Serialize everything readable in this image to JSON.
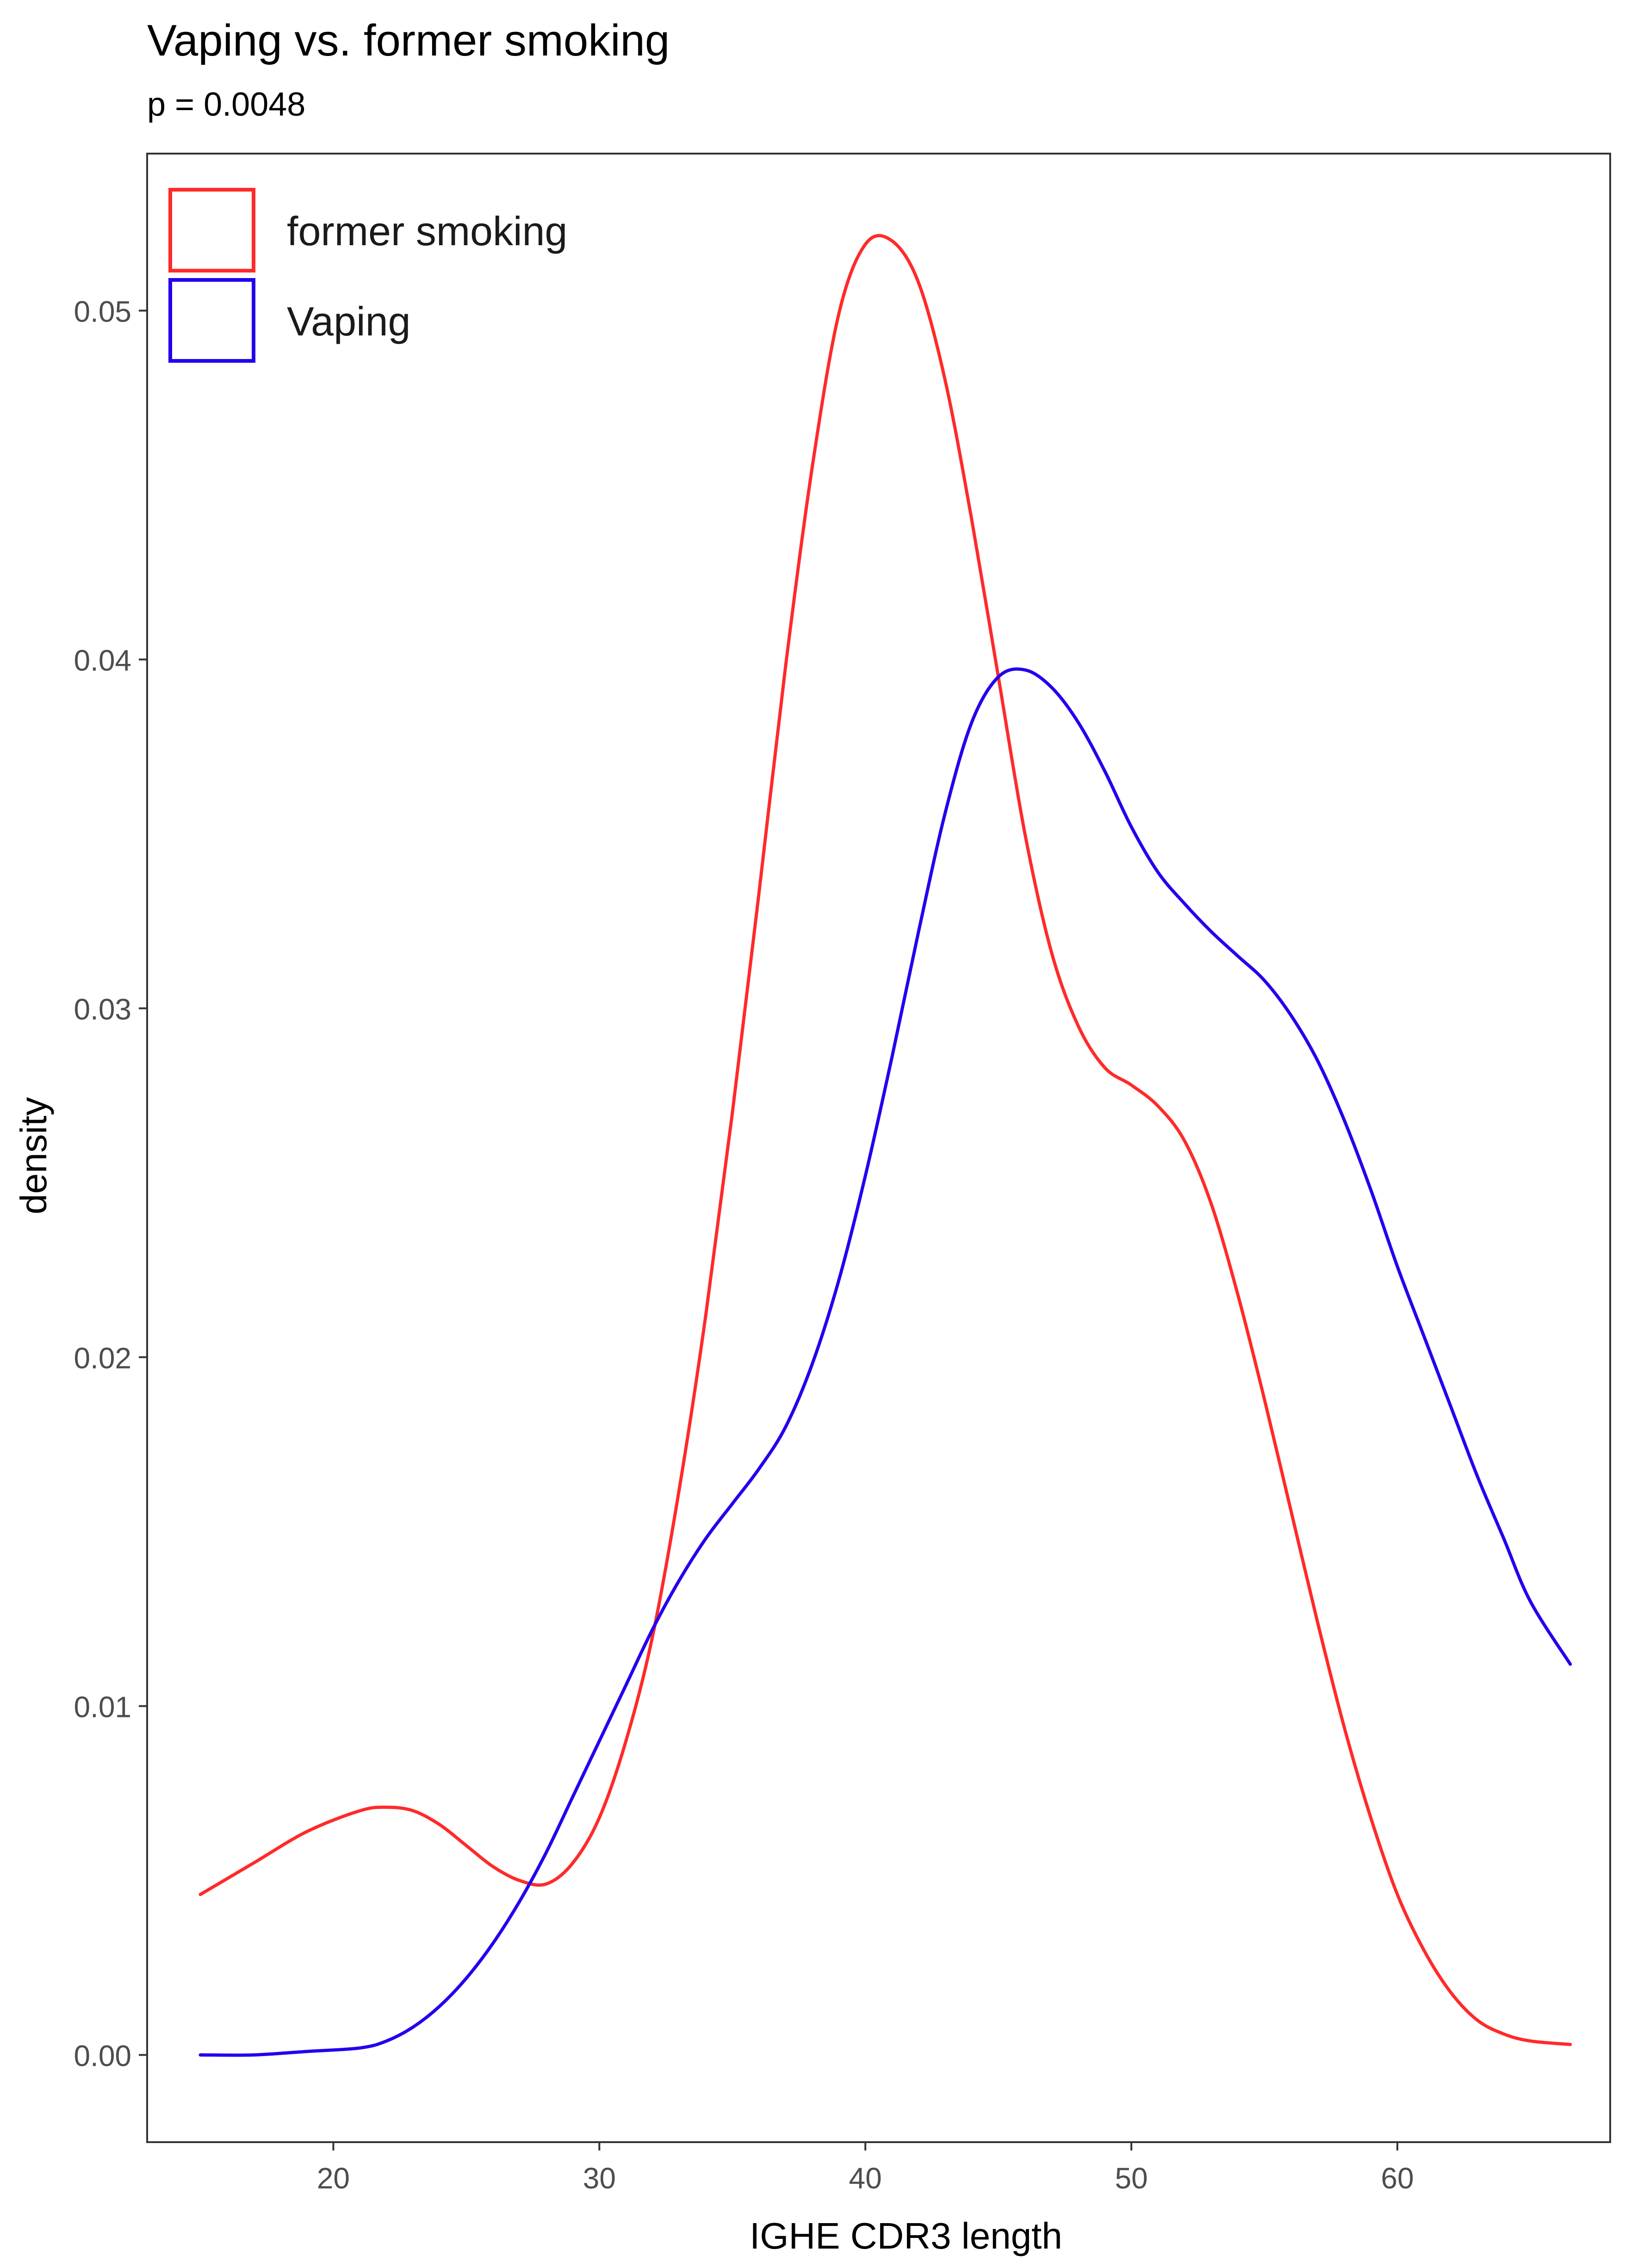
{
  "chart_data": {
    "type": "line",
    "title": "Vaping vs. former smoking",
    "subtitle": "p = 0.0048",
    "xlabel": "IGHE CDR3 length",
    "ylabel": "density",
    "xlim": [
      13,
      68
    ],
    "ylim": [
      -0.0025,
      0.0545
    ],
    "x_ticks": [
      20,
      30,
      40,
      50,
      60
    ],
    "x_tick_labels": [
      "20",
      "30",
      "40",
      "50",
      "60"
    ],
    "y_ticks": [
      0.0,
      0.01,
      0.02,
      0.03,
      0.04,
      0.05
    ],
    "y_tick_labels": [
      "0.00",
      "0.01",
      "0.02",
      "0.03",
      "0.04",
      "0.05"
    ],
    "grid": false,
    "legend_position": "top-left",
    "series": [
      {
        "name": "former smoking",
        "color": "#ff2a2a",
        "x": [
          15,
          17,
          19,
          21,
          22,
          23,
          24,
          25,
          26,
          27,
          28,
          29,
          30,
          31,
          32,
          33,
          34,
          35,
          36,
          37,
          38,
          39,
          40,
          41,
          42,
          43,
          44,
          45,
          46,
          47,
          48,
          49,
          50,
          51,
          52,
          53,
          54,
          55,
          56,
          57,
          58,
          59,
          60,
          61,
          62,
          63,
          64,
          65,
          66.5
        ],
        "y": [
          0.0046,
          0.0055,
          0.0064,
          0.007,
          0.0071,
          0.007,
          0.0066,
          0.006,
          0.0054,
          0.005,
          0.0049,
          0.0055,
          0.0068,
          0.009,
          0.012,
          0.0162,
          0.0212,
          0.027,
          0.0333,
          0.0398,
          0.0455,
          0.0499,
          0.0519,
          0.052,
          0.0508,
          0.048,
          0.044,
          0.0395,
          0.035,
          0.0316,
          0.0295,
          0.0283,
          0.0278,
          0.0272,
          0.0262,
          0.0244,
          0.0218,
          0.0188,
          0.0156,
          0.0124,
          0.0094,
          0.0068,
          0.0046,
          0.003,
          0.0018,
          0.001,
          0.0006,
          0.0004,
          0.0003
        ]
      },
      {
        "name": "Vaping",
        "color": "#2200ee",
        "x": [
          15,
          17,
          19,
          21,
          22,
          23,
          24,
          25,
          26,
          27,
          28,
          29,
          30,
          31,
          32,
          33,
          34,
          35,
          36,
          37,
          38,
          39,
          40,
          41,
          42,
          43,
          44,
          45,
          46,
          47,
          48,
          49,
          50,
          51,
          52,
          53,
          54,
          55,
          56,
          57,
          58,
          59,
          60,
          61,
          62,
          63,
          64,
          65,
          66.5
        ],
        "y": [
          0.0,
          0.0,
          0.0001,
          0.0002,
          0.0004,
          0.0008,
          0.0014,
          0.0022,
          0.0032,
          0.0044,
          0.0058,
          0.0074,
          0.009,
          0.0106,
          0.0122,
          0.0136,
          0.0148,
          0.0158,
          0.0168,
          0.018,
          0.0198,
          0.0222,
          0.0252,
          0.0286,
          0.0322,
          0.0356,
          0.0382,
          0.0395,
          0.0397,
          0.0392,
          0.0382,
          0.0368,
          0.0352,
          0.0339,
          0.033,
          0.0322,
          0.0315,
          0.0308,
          0.0298,
          0.0285,
          0.0268,
          0.0248,
          0.0226,
          0.0206,
          0.0186,
          0.0166,
          0.0148,
          0.013,
          0.0112
        ]
      }
    ]
  }
}
